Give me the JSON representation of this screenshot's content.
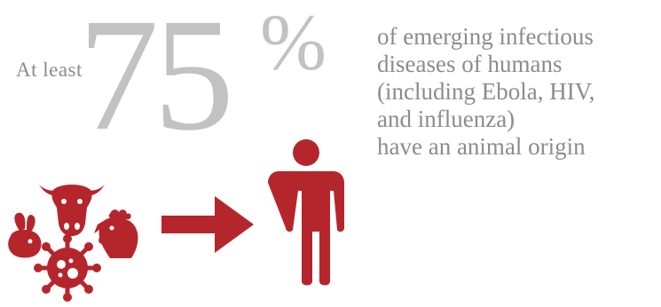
{
  "headline": {
    "prefix": "At least",
    "number": "75",
    "percent_sign": "%"
  },
  "description_lines": [
    "of emerging infectious",
    "diseases of humans",
    "(including Ebola, HIV,",
    "and influenza)",
    "have an animal origin"
  ],
  "colors": {
    "accent": "#b5262c",
    "number": "#c2c2c2",
    "text": "#8c8c8c"
  },
  "icons": [
    "cow-icon",
    "rabbit-icon",
    "chicken-icon",
    "virus-icon",
    "arrow-right-icon",
    "person-icon"
  ]
}
